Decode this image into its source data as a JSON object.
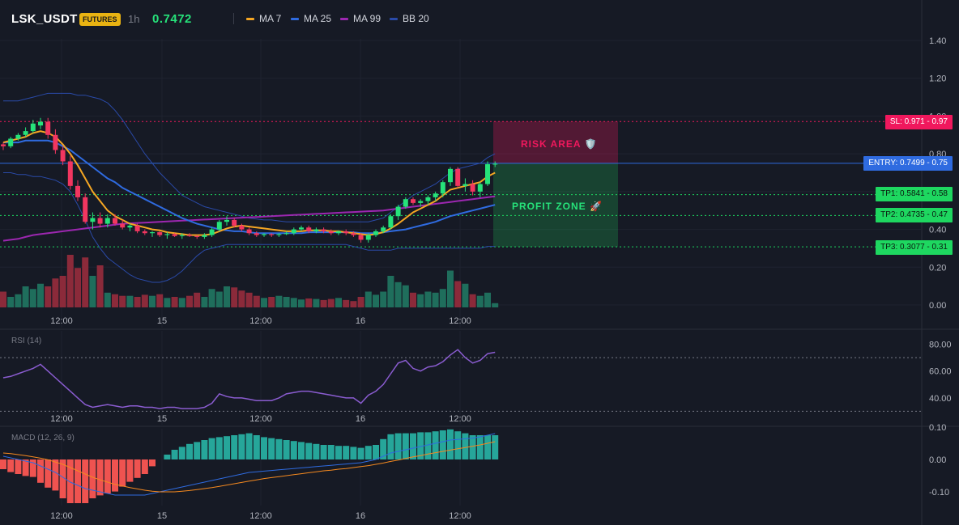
{
  "header": {
    "symbol": "LSK_USDT",
    "badge": "FUTURES",
    "timeframe": "1h",
    "price": "0.7472",
    "legend": [
      {
        "name": "MA 7",
        "color": "#f5a623"
      },
      {
        "name": "MA 25",
        "color": "#2f6be0"
      },
      {
        "name": "MA 99",
        "color": "#9c27b0"
      },
      {
        "name": "BB 20",
        "color": "#2a4aa8"
      }
    ]
  },
  "price_axis": {
    "labels": [
      "1.40",
      "1.20",
      "1.00",
      "0.80",
      "0.60",
      "0.40",
      "0.20",
      "0.00"
    ]
  },
  "rsi_axis": {
    "labels": [
      "80.00",
      "60.00",
      "40.00"
    ]
  },
  "macd_axis": {
    "labels": [
      "0.10",
      "0.00",
      "-0.10"
    ]
  },
  "time_axis": {
    "labels": [
      "12:00",
      "15",
      "12:00",
      "16",
      "12:00"
    ]
  },
  "levels": {
    "sl": "SL: 0.971 - 0.97",
    "entry": "ENTRY: 0.7499 - 0.75",
    "tp1": "TP1: 0.5841 - 0.58",
    "tp2": "TP2: 0.4735 - 0.47",
    "tp3": "TP3: 0.3077 - 0.31"
  },
  "zones": {
    "risk": "RISK AREA 🛡️",
    "profit": "PROFIT ZONE 🚀"
  },
  "indicators": {
    "rsi": "RSI (14)",
    "macd": "MACD (12, 26, 9)"
  },
  "colors": {
    "up": "#26e27a",
    "down": "#f23660",
    "vol_up": "#1f6e5c",
    "vol_down": "#8b2a3a",
    "sl": "#f0185d",
    "entry": "#2f6be0",
    "tp": "#1ed760",
    "rsi": "#8a5cd0",
    "macd": "#2f6be0",
    "signal": "#f5891f"
  },
  "chart_data": {
    "type": "candlestick",
    "price_range": [
      0,
      1.4
    ],
    "candles": [
      [
        0.85,
        0.86,
        0.82,
        0.84
      ],
      [
        0.84,
        0.89,
        0.83,
        0.88
      ],
      [
        0.88,
        0.91,
        0.87,
        0.9
      ],
      [
        0.9,
        0.94,
        0.89,
        0.92
      ],
      [
        0.92,
        0.98,
        0.91,
        0.96
      ],
      [
        0.95,
        0.99,
        0.93,
        0.97
      ],
      [
        0.97,
        0.99,
        0.88,
        0.9
      ],
      [
        0.9,
        0.93,
        0.8,
        0.82
      ],
      [
        0.82,
        0.84,
        0.74,
        0.76
      ],
      [
        0.76,
        0.79,
        0.61,
        0.63
      ],
      [
        0.63,
        0.66,
        0.55,
        0.57
      ],
      [
        0.57,
        0.59,
        0.43,
        0.44
      ],
      [
        0.44,
        0.49,
        0.4,
        0.46
      ],
      [
        0.46,
        0.49,
        0.41,
        0.43
      ],
      [
        0.43,
        0.48,
        0.41,
        0.46
      ],
      [
        0.46,
        0.48,
        0.42,
        0.43
      ],
      [
        0.43,
        0.45,
        0.4,
        0.41
      ],
      [
        0.41,
        0.43,
        0.39,
        0.42
      ],
      [
        0.42,
        0.43,
        0.38,
        0.39
      ],
      [
        0.39,
        0.4,
        0.37,
        0.38
      ],
      [
        0.38,
        0.39,
        0.36,
        0.385
      ],
      [
        0.385,
        0.39,
        0.36,
        0.37
      ],
      [
        0.37,
        0.385,
        0.35,
        0.375
      ],
      [
        0.375,
        0.38,
        0.36,
        0.365
      ],
      [
        0.365,
        0.38,
        0.35,
        0.37
      ],
      [
        0.37,
        0.38,
        0.36,
        0.365
      ],
      [
        0.365,
        0.37,
        0.35,
        0.36
      ],
      [
        0.36,
        0.38,
        0.35,
        0.37
      ],
      [
        0.37,
        0.41,
        0.36,
        0.4
      ],
      [
        0.4,
        0.45,
        0.39,
        0.44
      ],
      [
        0.44,
        0.47,
        0.42,
        0.45
      ],
      [
        0.45,
        0.46,
        0.41,
        0.42
      ],
      [
        0.42,
        0.43,
        0.39,
        0.4
      ],
      [
        0.4,
        0.41,
        0.37,
        0.38
      ],
      [
        0.38,
        0.39,
        0.36,
        0.37
      ],
      [
        0.37,
        0.38,
        0.36,
        0.375
      ],
      [
        0.375,
        0.38,
        0.36,
        0.37
      ],
      [
        0.37,
        0.38,
        0.36,
        0.375
      ],
      [
        0.375,
        0.39,
        0.37,
        0.38
      ],
      [
        0.38,
        0.41,
        0.37,
        0.4
      ],
      [
        0.4,
        0.42,
        0.39,
        0.41
      ],
      [
        0.41,
        0.42,
        0.38,
        0.39
      ],
      [
        0.39,
        0.41,
        0.38,
        0.4
      ],
      [
        0.4,
        0.41,
        0.38,
        0.39
      ],
      [
        0.39,
        0.4,
        0.37,
        0.38
      ],
      [
        0.38,
        0.395,
        0.37,
        0.39
      ],
      [
        0.39,
        0.4,
        0.37,
        0.38
      ],
      [
        0.38,
        0.39,
        0.36,
        0.37
      ],
      [
        0.37,
        0.38,
        0.33,
        0.345
      ],
      [
        0.345,
        0.38,
        0.33,
        0.37
      ],
      [
        0.37,
        0.4,
        0.36,
        0.39
      ],
      [
        0.39,
        0.42,
        0.38,
        0.41
      ],
      [
        0.41,
        0.48,
        0.4,
        0.47
      ],
      [
        0.47,
        0.53,
        0.45,
        0.52
      ],
      [
        0.52,
        0.57,
        0.51,
        0.56
      ],
      [
        0.56,
        0.57,
        0.53,
        0.54
      ],
      [
        0.54,
        0.56,
        0.52,
        0.55
      ],
      [
        0.55,
        0.58,
        0.53,
        0.57
      ],
      [
        0.57,
        0.6,
        0.55,
        0.59
      ],
      [
        0.59,
        0.66,
        0.57,
        0.65
      ],
      [
        0.65,
        0.73,
        0.63,
        0.72
      ],
      [
        0.72,
        0.73,
        0.62,
        0.63
      ],
      [
        0.63,
        0.67,
        0.6,
        0.64
      ],
      [
        0.64,
        0.66,
        0.58,
        0.6
      ],
      [
        0.6,
        0.65,
        0.57,
        0.64
      ],
      [
        0.64,
        0.76,
        0.63,
        0.745
      ],
      [
        0.745,
        0.76,
        0.73,
        0.7472
      ]
    ],
    "volume": [
      30,
      20,
      25,
      40,
      35,
      45,
      40,
      55,
      60,
      100,
      75,
      95,
      60,
      80,
      28,
      25,
      22,
      22,
      20,
      24,
      22,
      25,
      18,
      20,
      18,
      22,
      28,
      20,
      35,
      30,
      40,
      38,
      32,
      28,
      22,
      18,
      20,
      22,
      20,
      18,
      15,
      17,
      16,
      14,
      16,
      18,
      14,
      12,
      20,
      30,
      24,
      30,
      60,
      48,
      42,
      28,
      25,
      30,
      28,
      35,
      70,
      50,
      45,
      25,
      22,
      28,
      8
    ],
    "ma7": [
      0.86,
      0.87,
      0.88,
      0.89,
      0.91,
      0.92,
      0.91,
      0.89,
      0.85,
      0.8,
      0.74,
      0.67,
      0.6,
      0.55,
      0.5,
      0.47,
      0.45,
      0.43,
      0.42,
      0.41,
      0.4,
      0.395,
      0.385,
      0.38,
      0.375,
      0.37,
      0.37,
      0.37,
      0.375,
      0.39,
      0.405,
      0.415,
      0.42,
      0.415,
      0.41,
      0.405,
      0.4,
      0.395,
      0.39,
      0.39,
      0.39,
      0.395,
      0.395,
      0.395,
      0.39,
      0.39,
      0.385,
      0.38,
      0.375,
      0.37,
      0.375,
      0.385,
      0.405,
      0.43,
      0.46,
      0.49,
      0.51,
      0.53,
      0.55,
      0.58,
      0.61,
      0.62,
      0.63,
      0.64,
      0.65,
      0.68,
      0.7
    ],
    "ma25": [
      0.86,
      0.86,
      0.86,
      0.87,
      0.87,
      0.87,
      0.87,
      0.86,
      0.84,
      0.82,
      0.79,
      0.76,
      0.73,
      0.7,
      0.67,
      0.65,
      0.62,
      0.6,
      0.58,
      0.56,
      0.54,
      0.52,
      0.5,
      0.48,
      0.46,
      0.445,
      0.43,
      0.42,
      0.41,
      0.4,
      0.395,
      0.39,
      0.39,
      0.385,
      0.38,
      0.38,
      0.38,
      0.38,
      0.38,
      0.38,
      0.38,
      0.385,
      0.385,
      0.385,
      0.385,
      0.385,
      0.385,
      0.385,
      0.38,
      0.38,
      0.38,
      0.385,
      0.39,
      0.395,
      0.4,
      0.41,
      0.42,
      0.43,
      0.44,
      0.455,
      0.47,
      0.48,
      0.49,
      0.5,
      0.51,
      0.52,
      0.53
    ],
    "ma99": [
      0.34,
      0.345,
      0.35,
      0.36,
      0.37,
      0.375,
      0.38,
      0.385,
      0.39,
      0.395,
      0.4,
      0.405,
      0.41,
      0.415,
      0.42,
      0.425,
      0.43,
      0.432,
      0.434,
      0.436,
      0.438,
      0.44,
      0.442,
      0.444,
      0.446,
      0.448,
      0.45,
      0.452,
      0.454,
      0.456,
      0.458,
      0.46,
      0.462,
      0.464,
      0.466,
      0.468,
      0.47,
      0.472,
      0.474,
      0.476,
      0.478,
      0.48,
      0.482,
      0.484,
      0.486,
      0.488,
      0.49,
      0.492,
      0.494,
      0.496,
      0.498,
      0.5,
      0.505,
      0.51,
      0.515,
      0.52,
      0.525,
      0.53,
      0.535,
      0.54,
      0.545,
      0.55,
      0.555,
      0.56,
      0.565,
      0.57,
      0.575
    ],
    "bb_upper": [
      1.08,
      1.08,
      1.08,
      1.09,
      1.1,
      1.11,
      1.12,
      1.12,
      1.12,
      1.12,
      1.11,
      1.11,
      1.1,
      1.09,
      1.07,
      1.03,
      0.98,
      0.92,
      0.86,
      0.8,
      0.75,
      0.7,
      0.66,
      0.62,
      0.58,
      0.56,
      0.54,
      0.52,
      0.51,
      0.5,
      0.49,
      0.48,
      0.47,
      0.46,
      0.455,
      0.45,
      0.45,
      0.445,
      0.44,
      0.44,
      0.44,
      0.44,
      0.44,
      0.44,
      0.44,
      0.44,
      0.44,
      0.44,
      0.44,
      0.44,
      0.45,
      0.46,
      0.49,
      0.52,
      0.55,
      0.58,
      0.6,
      0.62,
      0.64,
      0.67,
      0.7,
      0.72,
      0.73,
      0.74,
      0.75,
      0.78,
      0.8
    ],
    "bb_lower": [
      0.7,
      0.7,
      0.69,
      0.69,
      0.68,
      0.68,
      0.67,
      0.66,
      0.64,
      0.6,
      0.53,
      0.45,
      0.36,
      0.3,
      0.25,
      0.22,
      0.19,
      0.16,
      0.14,
      0.13,
      0.12,
      0.12,
      0.13,
      0.15,
      0.18,
      0.22,
      0.26,
      0.29,
      0.3,
      0.31,
      0.32,
      0.32,
      0.32,
      0.32,
      0.32,
      0.32,
      0.32,
      0.32,
      0.32,
      0.32,
      0.32,
      0.32,
      0.32,
      0.32,
      0.32,
      0.32,
      0.32,
      0.31,
      0.3,
      0.29,
      0.29,
      0.29,
      0.29,
      0.3,
      0.3,
      0.3,
      0.3,
      0.3,
      0.3,
      0.3,
      0.3,
      0.3,
      0.3,
      0.3,
      0.3,
      0.31,
      0.31
    ],
    "rsi": [
      55,
      56,
      58,
      60,
      62,
      65,
      60,
      55,
      50,
      45,
      40,
      35,
      33,
      34,
      35,
      34,
      33,
      34,
      34,
      33,
      33,
      32,
      33,
      33,
      32,
      32,
      32,
      33,
      36,
      43,
      41,
      40,
      40,
      39,
      38,
      38,
      38,
      40,
      43,
      44,
      45,
      45,
      44,
      43,
      42,
      41,
      40,
      40,
      36,
      42,
      45,
      50,
      58,
      66,
      68,
      62,
      60,
      63,
      64,
      67,
      72,
      76,
      70,
      66,
      68,
      73,
      74
    ],
    "macd": [
      0.01,
      0.005,
      0.0,
      -0.005,
      -0.01,
      -0.02,
      -0.03,
      -0.04,
      -0.055,
      -0.07,
      -0.08,
      -0.09,
      -0.095,
      -0.1,
      -0.105,
      -0.11,
      -0.11,
      -0.11,
      -0.11,
      -0.11,
      -0.105,
      -0.1,
      -0.095,
      -0.09,
      -0.085,
      -0.08,
      -0.075,
      -0.07,
      -0.065,
      -0.06,
      -0.055,
      -0.05,
      -0.045,
      -0.04,
      -0.038,
      -0.036,
      -0.034,
      -0.032,
      -0.03,
      -0.028,
      -0.026,
      -0.024,
      -0.022,
      -0.02,
      -0.018,
      -0.016,
      -0.014,
      -0.012,
      -0.01,
      -0.005,
      0.0,
      0.01,
      0.02,
      0.025,
      0.03,
      0.035,
      0.04,
      0.045,
      0.05,
      0.055,
      0.06,
      0.062,
      0.064,
      0.066,
      0.07,
      0.075,
      0.08
    ],
    "signal": [
      0.02,
      0.018,
      0.015,
      0.012,
      0.008,
      0.004,
      -0.001,
      -0.008,
      -0.015,
      -0.025,
      -0.035,
      -0.045,
      -0.055,
      -0.063,
      -0.07,
      -0.077,
      -0.082,
      -0.087,
      -0.091,
      -0.095,
      -0.098,
      -0.1,
      -0.1,
      -0.1,
      -0.098,
      -0.096,
      -0.093,
      -0.09,
      -0.087,
      -0.083,
      -0.079,
      -0.075,
      -0.071,
      -0.067,
      -0.063,
      -0.059,
      -0.056,
      -0.053,
      -0.05,
      -0.047,
      -0.044,
      -0.041,
      -0.038,
      -0.035,
      -0.033,
      -0.03,
      -0.028,
      -0.025,
      -0.022,
      -0.019,
      -0.015,
      -0.011,
      -0.006,
      -0.002,
      0.003,
      0.008,
      0.012,
      0.017,
      0.021,
      0.025,
      0.029,
      0.033,
      0.037,
      0.041,
      0.045,
      0.05,
      0.055
    ]
  }
}
